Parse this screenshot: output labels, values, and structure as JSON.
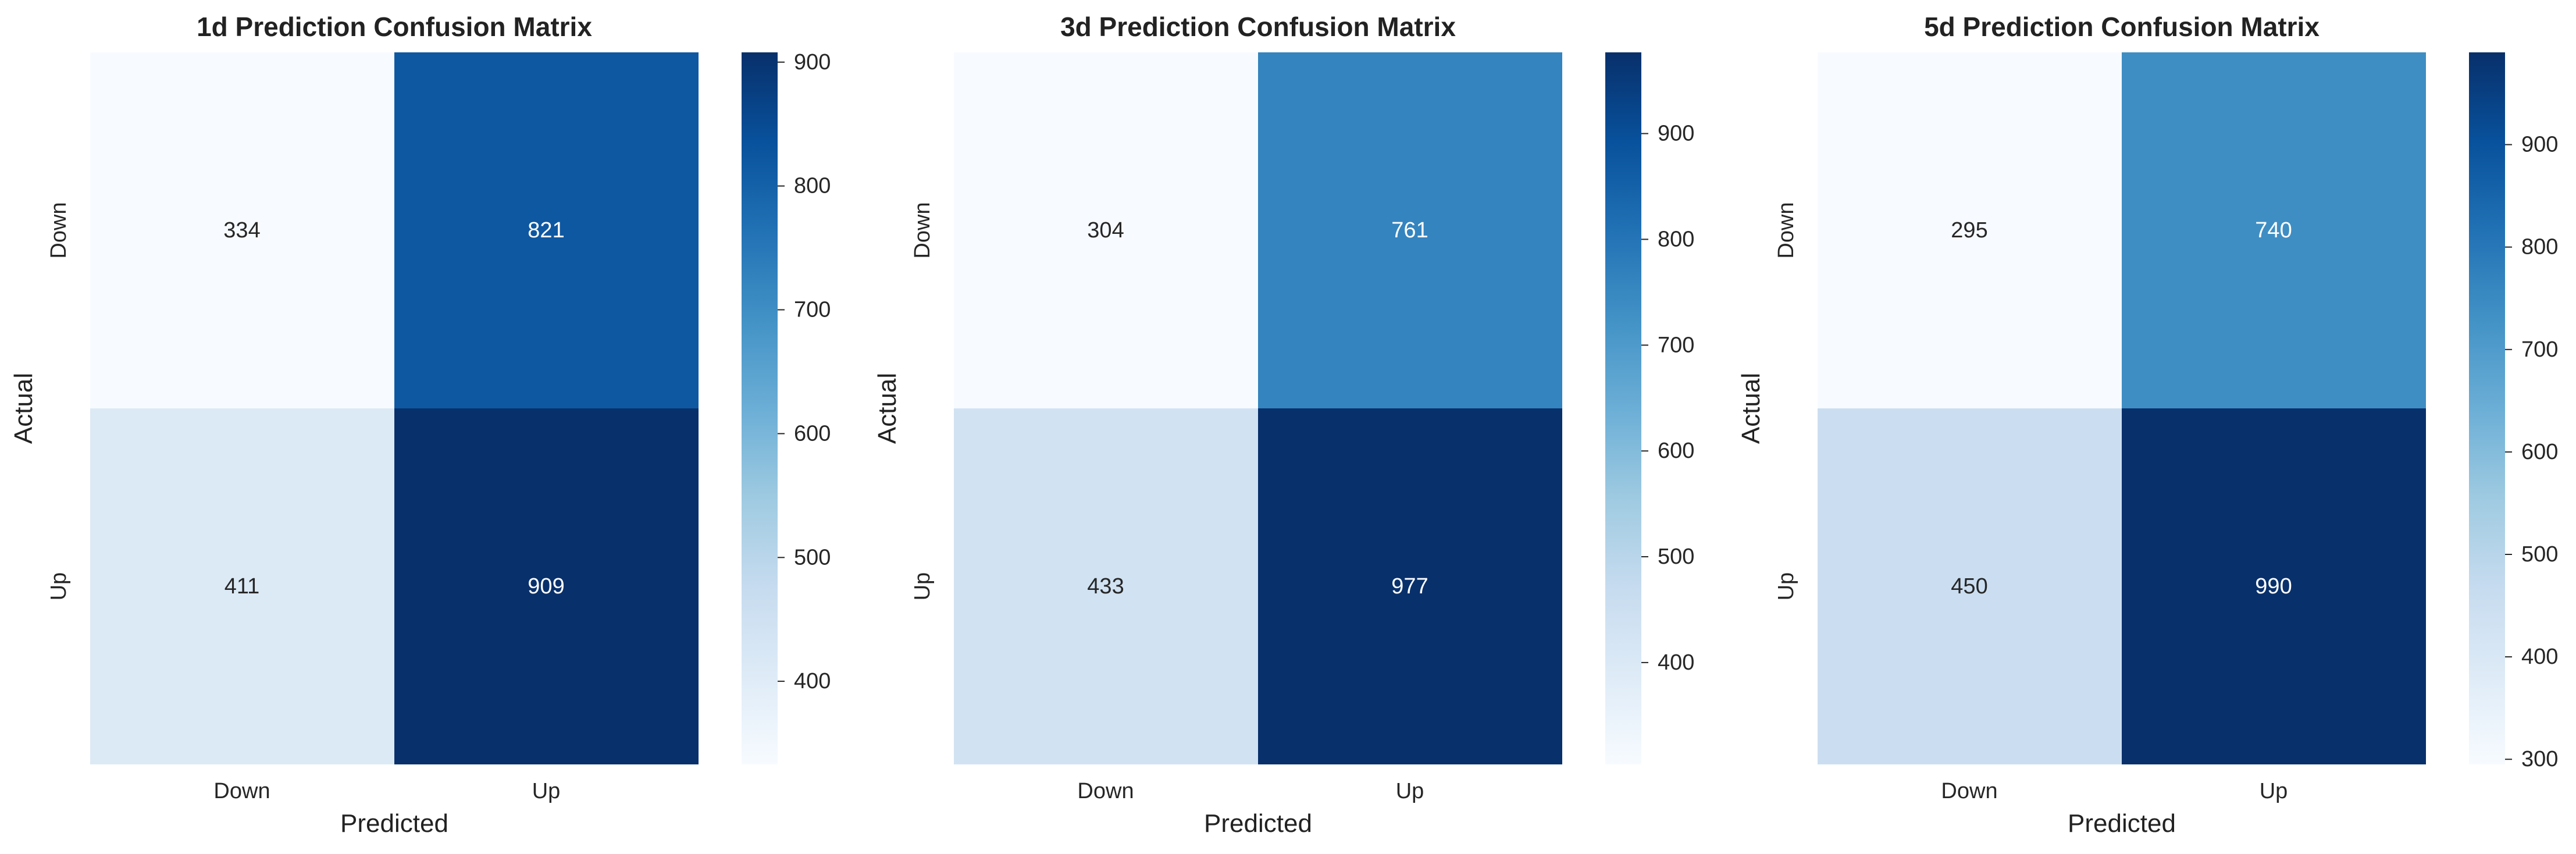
{
  "chart_data": [
    {
      "type": "heatmap",
      "title": "1d Prediction Confusion Matrix",
      "xlabel": "Predicted",
      "ylabel": "Actual",
      "x_categories": [
        "Down",
        "Up"
      ],
      "y_categories": [
        "Down",
        "Up"
      ],
      "values": [
        [
          334,
          821
        ],
        [
          411,
          909
        ]
      ],
      "colormap": "Blues",
      "color_range": [
        334,
        909
      ],
      "colorbar_ticks": [
        400,
        500,
        600,
        700,
        800,
        900
      ],
      "annotations": true
    },
    {
      "type": "heatmap",
      "title": "3d Prediction Confusion Matrix",
      "xlabel": "Predicted",
      "ylabel": "Actual",
      "x_categories": [
        "Down",
        "Up"
      ],
      "y_categories": [
        "Down",
        "Up"
      ],
      "values": [
        [
          304,
          761
        ],
        [
          433,
          977
        ]
      ],
      "colormap": "Blues",
      "color_range": [
        304,
        977
      ],
      "colorbar_ticks": [
        400,
        500,
        600,
        700,
        800,
        900
      ],
      "annotations": true
    },
    {
      "type": "heatmap",
      "title": "5d Prediction Confusion Matrix",
      "xlabel": "Predicted",
      "ylabel": "Actual",
      "x_categories": [
        "Down",
        "Up"
      ],
      "y_categories": [
        "Down",
        "Up"
      ],
      "values": [
        [
          295,
          740
        ],
        [
          450,
          990
        ]
      ],
      "colormap": "Blues",
      "color_range": [
        295,
        990
      ],
      "colorbar_ticks": [
        300,
        400,
        500,
        600,
        700,
        800,
        900
      ],
      "annotations": true
    }
  ]
}
